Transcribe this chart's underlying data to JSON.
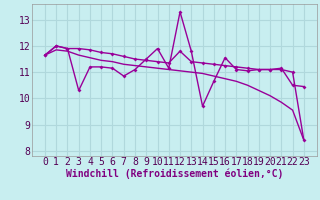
{
  "title": "",
  "xlabel": "Windchill (Refroidissement éolien,°C)",
  "bg_color": "#c8eef0",
  "line_color": "#990099",
  "x_values": [
    0,
    1,
    2,
    3,
    4,
    5,
    6,
    7,
    8,
    9,
    10,
    11,
    12,
    13,
    14,
    15,
    16,
    17,
    18,
    19,
    20,
    21,
    22,
    23
  ],
  "series1": [
    11.65,
    12.0,
    11.9,
    10.3,
    11.2,
    11.2,
    11.15,
    10.85,
    11.1,
    11.5,
    11.9,
    11.15,
    13.3,
    11.8,
    9.7,
    10.65,
    11.55,
    11.1,
    11.05,
    11.1,
    11.1,
    11.15,
    10.5,
    10.45
  ],
  "series2": [
    11.65,
    12.0,
    11.9,
    11.9,
    11.85,
    11.75,
    11.7,
    11.6,
    11.5,
    11.45,
    11.4,
    11.35,
    11.8,
    11.4,
    11.35,
    11.3,
    11.25,
    11.2,
    11.15,
    11.1,
    11.1,
    11.1,
    11.0,
    8.4
  ],
  "series3": [
    11.65,
    11.85,
    11.8,
    11.65,
    11.55,
    11.45,
    11.4,
    11.3,
    11.25,
    11.2,
    11.15,
    11.1,
    11.05,
    11.0,
    10.95,
    10.85,
    10.75,
    10.65,
    10.5,
    10.3,
    10.1,
    9.85,
    9.55,
    8.4
  ],
  "ylim": [
    7.8,
    13.6
  ],
  "yticks": [
    8,
    9,
    10,
    11,
    12,
    13
  ],
  "xticks": [
    0,
    1,
    2,
    3,
    4,
    5,
    6,
    7,
    8,
    9,
    10,
    11,
    12,
    13,
    14,
    15,
    16,
    17,
    18,
    19,
    20,
    21,
    22,
    23
  ],
  "xlabel_color": "#800080",
  "xlabel_fontsize": 7,
  "tick_fontsize": 7,
  "grid_color": "#b0d8dc",
  "spine_color": "#999999"
}
